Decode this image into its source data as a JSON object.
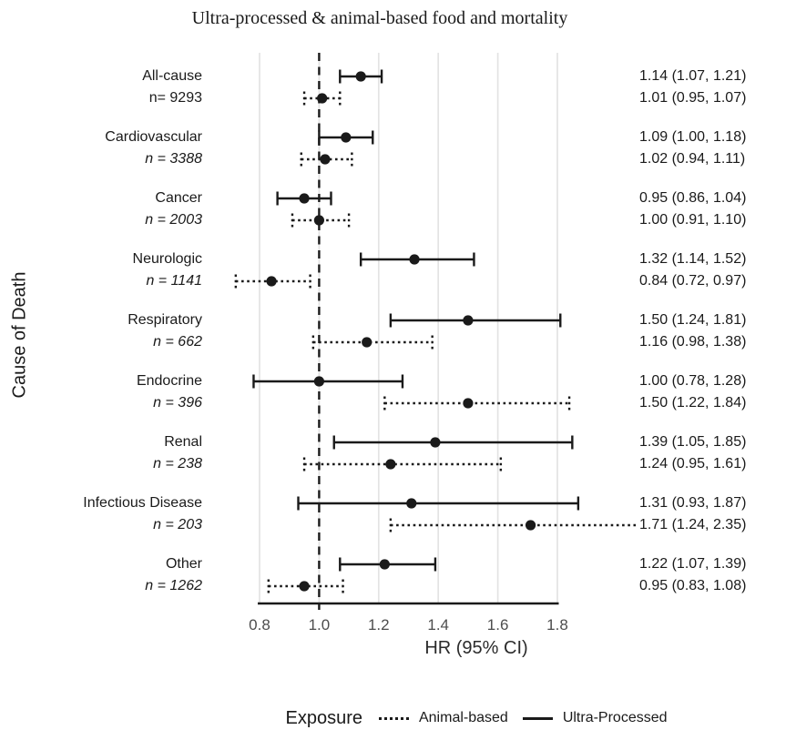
{
  "title": "Ultra-processed & animal-based food and mortality",
  "y_axis_label": "Cause of Death",
  "x_axis_label": "HR (95% CI)",
  "legend": {
    "title": "Exposure",
    "items": [
      {
        "label": "Animal-based",
        "line_style": "dotted"
      },
      {
        "label": "Ultra-Processed",
        "line_style": "solid"
      }
    ]
  },
  "colors": {
    "ink": "#1a1a1a",
    "grid": "#e3e3e3",
    "tick_text": "#4d4d4d",
    "background": "#ffffff"
  },
  "chart_data": {
    "type": "forest",
    "x_axis": {
      "range": [
        0.8,
        1.8
      ],
      "ticks": [
        0.8,
        1.0,
        1.2,
        1.4,
        1.6,
        1.8
      ],
      "tick_labels": [
        "0.8",
        "1.0",
        "1.2",
        "1.4",
        "1.6",
        "1.8"
      ],
      "reference_line": 1.0,
      "grid": true
    },
    "series_names": [
      "Ultra-Processed",
      "Animal-based"
    ],
    "groups": [
      {
        "label": "All-cause",
        "n_label": "n= 9293",
        "n_italic": false,
        "ultra_processed": {
          "hr": 1.14,
          "lo": 1.07,
          "hi": 1.21,
          "text": "1.14 (1.07, 1.21)"
        },
        "animal_based": {
          "hr": 1.01,
          "lo": 0.95,
          "hi": 1.07,
          "text": "1.01 (0.95, 1.07)"
        }
      },
      {
        "label": "Cardiovascular",
        "n_label": "n = 3388",
        "n_italic": true,
        "ultra_processed": {
          "hr": 1.09,
          "lo": 1.0,
          "hi": 1.18,
          "text": "1.09 (1.00, 1.18)"
        },
        "animal_based": {
          "hr": 1.02,
          "lo": 0.94,
          "hi": 1.11,
          "text": "1.02 (0.94, 1.11)"
        }
      },
      {
        "label": "Cancer",
        "n_label": "n = 2003",
        "n_italic": true,
        "ultra_processed": {
          "hr": 0.95,
          "lo": 0.86,
          "hi": 1.04,
          "text": "0.95 (0.86, 1.04)"
        },
        "animal_based": {
          "hr": 1.0,
          "lo": 0.91,
          "hi": 1.1,
          "text": "1.00 (0.91, 1.10)"
        }
      },
      {
        "label": "Neurologic",
        "n_label": "n = 1141",
        "n_italic": true,
        "ultra_processed": {
          "hr": 1.32,
          "lo": 1.14,
          "hi": 1.52,
          "text": "1.32 (1.14, 1.52)"
        },
        "animal_based": {
          "hr": 0.84,
          "lo": 0.72,
          "hi": 0.97,
          "text": "0.84 (0.72, 0.97)"
        }
      },
      {
        "label": "Respiratory",
        "n_label": "n = 662",
        "n_italic": true,
        "ultra_processed": {
          "hr": 1.5,
          "lo": 1.24,
          "hi": 1.81,
          "text": "1.50 (1.24, 1.81)"
        },
        "animal_based": {
          "hr": 1.16,
          "lo": 0.98,
          "hi": 1.38,
          "text": "1.16 (0.98, 1.38)"
        }
      },
      {
        "label": "Endocrine",
        "n_label": "n = 396",
        "n_italic": true,
        "ultra_processed": {
          "hr": 1.0,
          "lo": 0.78,
          "hi": 1.28,
          "text": "1.00 (0.78, 1.28)"
        },
        "animal_based": {
          "hr": 1.5,
          "lo": 1.22,
          "hi": 1.84,
          "text": "1.50 (1.22, 1.84)"
        }
      },
      {
        "label": "Renal",
        "n_label": "n = 238",
        "n_italic": true,
        "ultra_processed": {
          "hr": 1.39,
          "lo": 1.05,
          "hi": 1.85,
          "text": "1.39 (1.05, 1.85)"
        },
        "animal_based": {
          "hr": 1.24,
          "lo": 0.95,
          "hi": 1.61,
          "text": "1.24 (0.95, 1.61)"
        }
      },
      {
        "label": "Infectious Disease",
        "n_label": "n = 203",
        "n_italic": true,
        "ultra_processed": {
          "hr": 1.31,
          "lo": 0.93,
          "hi": 1.87,
          "text": "1.31 (0.93, 1.87)"
        },
        "animal_based": {
          "hr": 1.71,
          "lo": 1.24,
          "hi": 2.35,
          "text": "1.71 (1.24, 2.35)"
        }
      },
      {
        "label": "Other",
        "n_label": "n = 1262",
        "n_italic": true,
        "ultra_processed": {
          "hr": 1.22,
          "lo": 1.07,
          "hi": 1.39,
          "text": "1.22 (1.07, 1.39)"
        },
        "animal_based": {
          "hr": 0.95,
          "lo": 0.83,
          "hi": 1.08,
          "text": "0.95 (0.83, 1.08)"
        }
      }
    ]
  }
}
